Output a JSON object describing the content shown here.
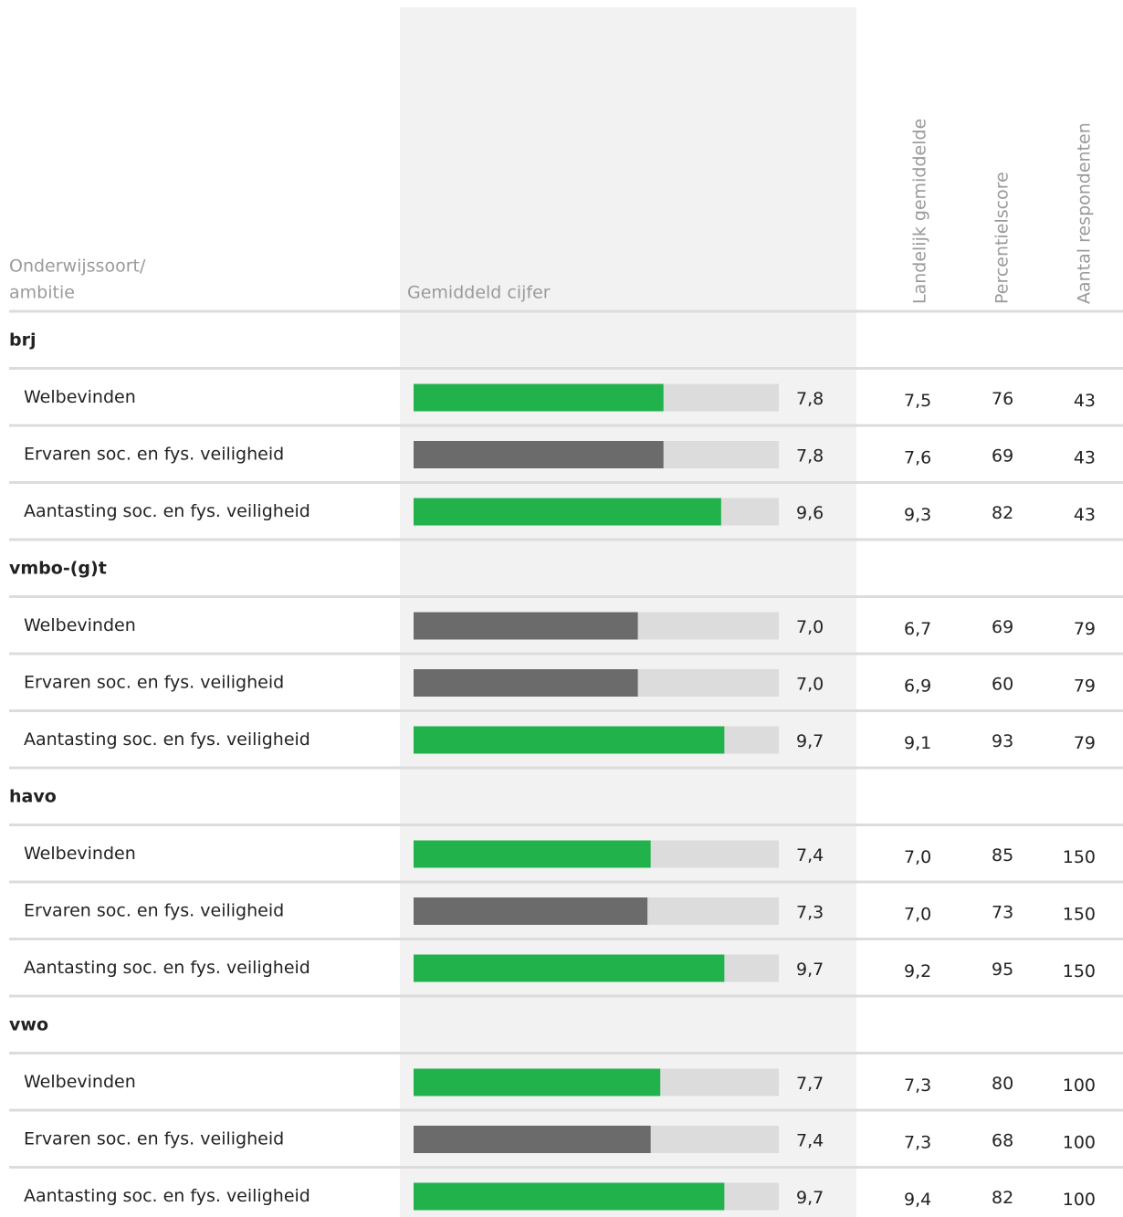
{
  "table": {
    "header": {
      "col1": [
        "Onderwijssoort/",
        "ambitie"
      ],
      "col2": "Gemiddeld cijfer",
      "col3": "Landelijk gemiddelde",
      "col4": "Percentielscore",
      "col5": "Aantal respondenten"
    },
    "xlim": [
      0,
      11.4
    ],
    "groups": [
      {
        "name": "brj",
        "rows": [
          {
            "label": "Welbevinden",
            "value": 7.8,
            "value_label": "7,8",
            "color": "#22b24c",
            "landelijk": "7,5",
            "percentiel": 76,
            "percentiel_color": "#6db33f",
            "aantal": 43
          },
          {
            "label": "Ervaren soc. en fys. veiligheid",
            "value": 7.8,
            "value_label": "7,8",
            "color": "#6b6b6b",
            "landelijk": "7,6",
            "percentiel": 69,
            "percentiel_color": "#6b6b6b",
            "aantal": 43
          },
          {
            "label": "Aantasting soc. en fys. veiligheid",
            "value": 9.6,
            "value_label": "9,6",
            "color": "#22b24c",
            "landelijk": "9,3",
            "percentiel": 82,
            "percentiel_color": "#6db33f",
            "aantal": 43
          }
        ]
      },
      {
        "name": "vmbo-(g)t",
        "rows": [
          {
            "label": "Welbevinden",
            "value": 7.0,
            "value_label": "7,0",
            "color": "#6b6b6b",
            "landelijk": "6,7",
            "percentiel": 69,
            "percentiel_color": "#6b6b6b",
            "aantal": 79
          },
          {
            "label": "Ervaren soc. en fys. veiligheid",
            "value": 7.0,
            "value_label": "7,0",
            "color": "#6b6b6b",
            "landelijk": "6,9",
            "percentiel": 60,
            "percentiel_color": "#6b6b6b",
            "aantal": 79
          },
          {
            "label": "Aantasting soc. en fys. veiligheid",
            "value": 9.7,
            "value_label": "9,7",
            "color": "#22b24c",
            "landelijk": "9,1",
            "percentiel": 93,
            "percentiel_color": "#6db33f",
            "aantal": 79
          }
        ]
      },
      {
        "name": "havo",
        "rows": [
          {
            "label": "Welbevinden",
            "value": 7.4,
            "value_label": "7,4",
            "color": "#22b24c",
            "landelijk": "7,0",
            "percentiel": 85,
            "percentiel_color": "#6db33f",
            "aantal": 150
          },
          {
            "label": "Ervaren soc. en fys. veiligheid",
            "value": 7.3,
            "value_label": "7,3",
            "color": "#6b6b6b",
            "landelijk": "7,0",
            "percentiel": 73,
            "percentiel_color": "#6b6b6b",
            "aantal": 150
          },
          {
            "label": "Aantasting soc. en fys. veiligheid",
            "value": 9.7,
            "value_label": "9,7",
            "color": "#22b24c",
            "landelijk": "9,2",
            "percentiel": 95,
            "percentiel_color": "#6db33f",
            "aantal": 150
          }
        ]
      },
      {
        "name": "vwo",
        "rows": [
          {
            "label": "Welbevinden",
            "value": 7.7,
            "value_label": "7,7",
            "color": "#22b24c",
            "landelijk": "7,3",
            "percentiel": 80,
            "percentiel_color": "#6db33f",
            "aantal": 100
          },
          {
            "label": "Ervaren soc. en fys. veiligheid",
            "value": 7.4,
            "value_label": "7,4",
            "color": "#6b6b6b",
            "landelijk": "7,3",
            "percentiel": 68,
            "percentiel_color": "#6b6b6b",
            "aantal": 100
          },
          {
            "label": "Aantasting soc. en fys. veiligheid",
            "value": 9.7,
            "value_label": "9,7",
            "color": "#22b24c",
            "landelijk": "9,4",
            "percentiel": 82,
            "percentiel_color": "#6db33f",
            "aantal": 100
          }
        ]
      }
    ]
  }
}
